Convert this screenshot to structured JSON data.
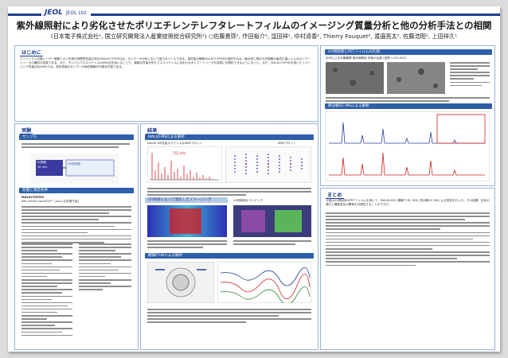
{
  "header": {
    "logo_mark": "JEOL",
    "logo_text": "JEOL Ltd.",
    "title": "紫外線照射により劣化させたポリエチレンテレフタレートフィルムのイメージング質量分析と他の分析手法との相関",
    "authors": "(日本電子株式会社¹, 国立研究開発法人産業技術総合研究所²) ○佐藤貴弥¹, 作田裕介¹, 窪田祥¹, 中村清香², Thierry Fouquet², 渡邉亮太², 佐藤浩昭², 上田祥久¹"
  },
  "sections": {
    "intro": "はじめに",
    "intro_text": "マトリックス支援レーザー脱離イオン化飛行時間型質量分析計(MALDI-TOFMS)は、ポリマーの分析において強力なツールである。高質量分解能MALDI-TOFMSを使用すれば、縮合系に単位や末端基の組成の違いによるポリマーシリーズの識別が容易である。また、タンデムマススペクトル(KMD)法を用いることで、複雑な質量分布もマススペクトルに含まれるポリマーシリーズを容易に可視化できるようになった。また、MALDI-TOFMSを用いたイメージング質量分析(MSI)では、試料表面のポリマーの局在情報が可視化可能である。",
    "experiment": "実験",
    "sample_bar": "サンプル",
    "uv_label": "UV照射",
    "uv_time": "30 min",
    "uv_degraded": "UV劣化部",
    "method_bar": "装置と測定条件",
    "instrument": "MALDI-TOFMS",
    "instrument_model": "JMS-S3000 SpiralTOF™-plus (日本電子製)",
    "results": "結果",
    "maldi_bar": "MALDI-MSによる解析",
    "maldi_sub": "MALDI-MS質量スペクトル＆KMDプロット",
    "kmd_label": "KMDプロット",
    "mass_label": "152 m/z",
    "uv_bar": "UV照射によって発生したイメージング",
    "ir_bar": "顕微FT-IRによる解析",
    "uv_mapping": "UV照射部のマッピング",
    "summary": "まとめ",
    "summary_text": "今回はUV照射後のPETフィルムを用いて、MALDI-MSI, 顕微FT-IR, SEM, 熱分解GC-MSによる測定を行った。その結果、劣化の進行と構造変化の関係を可視化することができた。",
    "right_bar": "UV照射部とPETフィルムの比較",
    "sem_cap": "SEMによる外観観察 紫外線照射 前後の比較 (倍率 ×100,000)",
    "gc_bar": "熱分解GC-MSによる解析"
  },
  "colors": {
    "primary": "#1d3f8f",
    "bar": "#2f5fa8",
    "heat_red": "#d7191c",
    "heat_blue": "#2b2fb3"
  }
}
